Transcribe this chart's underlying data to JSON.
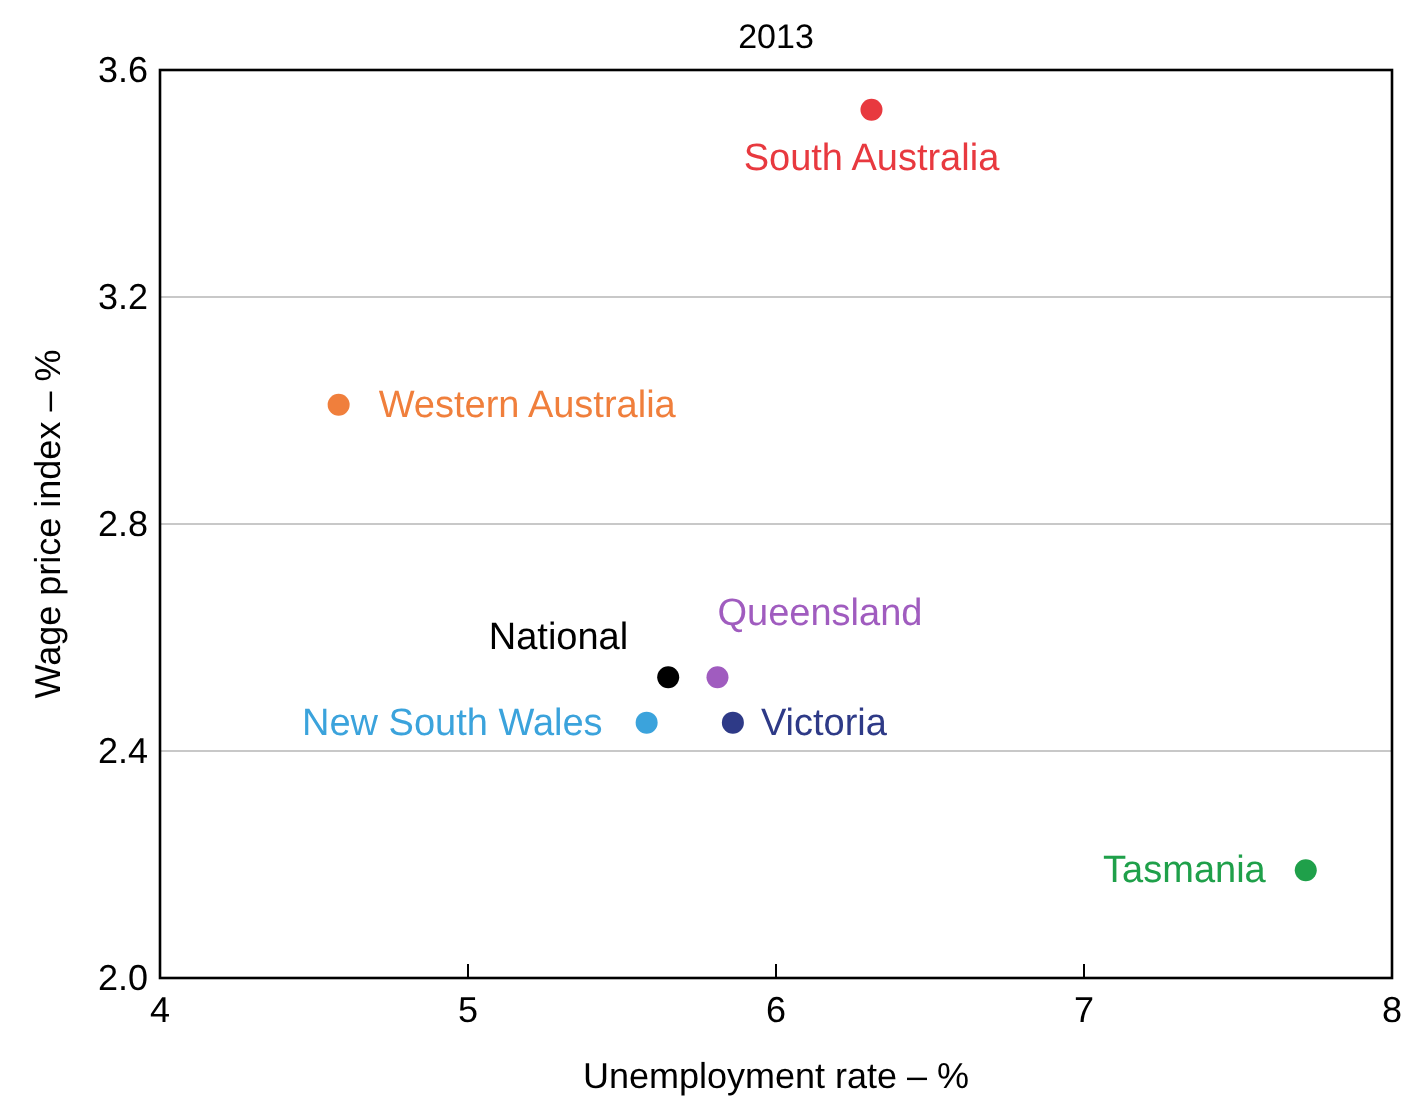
{
  "chart_data": {
    "type": "scatter",
    "title": "2013",
    "xlabel": "Unemployment rate – %",
    "ylabel": "Wage price index – %",
    "xlim": [
      4,
      8
    ],
    "xticks": [
      4,
      5,
      6,
      7,
      8
    ],
    "ylim": [
      2.0,
      3.6
    ],
    "yticks": [
      {
        "value": 2.0,
        "label": "2.0"
      },
      2.4,
      2.8,
      3.2,
      3.6
    ],
    "grid": "y",
    "marker": "circle",
    "series": [
      {
        "name": "South Australia",
        "color": "#e8393f",
        "x": [
          6.31
        ],
        "values": [
          3.53
        ]
      },
      {
        "name": "Western Australia",
        "color": "#f07f3c",
        "x": [
          4.58
        ],
        "values": [
          3.01
        ]
      },
      {
        "name": "National",
        "color": "#000000",
        "x": [
          5.65
        ],
        "values": [
          2.53
        ]
      },
      {
        "name": "Queensland",
        "color": "#a05cbf",
        "x": [
          5.81
        ],
        "values": [
          2.53
        ]
      },
      {
        "name": "New South Wales",
        "color": "#3ba3dc",
        "x": [
          5.58
        ],
        "values": [
          2.45
        ]
      },
      {
        "name": "Victoria",
        "color": "#2e3a87",
        "x": [
          5.86
        ],
        "values": [
          2.45
        ]
      },
      {
        "name": "Tasmania",
        "color": "#1fa04a",
        "x": [
          7.72
        ],
        "values": [
          2.19
        ]
      }
    ]
  }
}
